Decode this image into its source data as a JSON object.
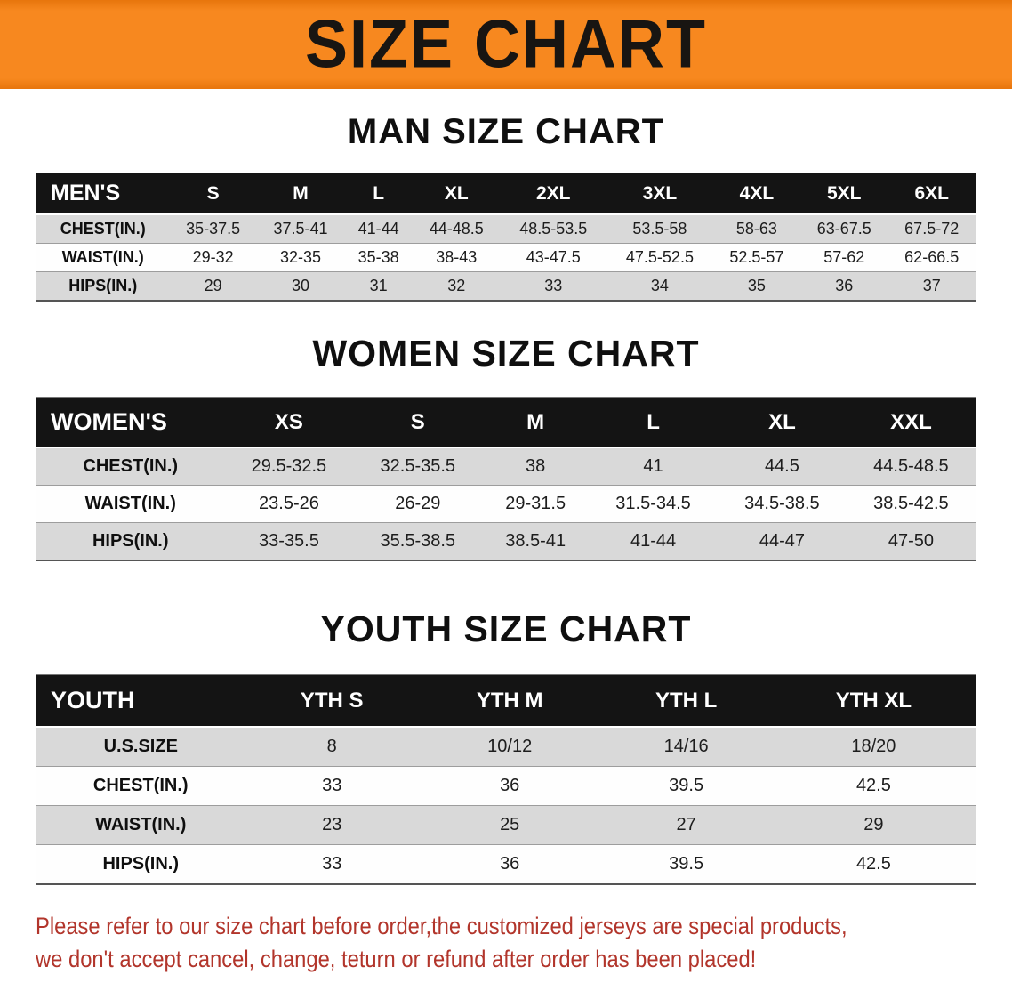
{
  "banner": {
    "title": "SIZE CHART"
  },
  "colors": {
    "banner_orange": "#f7881f",
    "banner_orange_dark": "#e7750c",
    "title_black": "#181512",
    "header_black": "#141414",
    "row_gray": "#d9d9d9",
    "footer_red": "#b2352b"
  },
  "chart_data": [
    {
      "type": "table",
      "title": "MAN SIZE CHART",
      "header": [
        "MEN'S",
        "S",
        "M",
        "L",
        "XL",
        "2XL",
        "3XL",
        "4XL",
        "5XL",
        "6XL"
      ],
      "rows": [
        [
          "CHEST(IN.)",
          "35-37.5",
          "37.5-41",
          "41-44",
          "44-48.5",
          "48.5-53.5",
          "53.5-58",
          "58-63",
          "63-67.5",
          "67.5-72"
        ],
        [
          "WAIST(IN.)",
          "29-32",
          "32-35",
          "35-38",
          "38-43",
          "43-47.5",
          "47.5-52.5",
          "52.5-57",
          "57-62",
          "62-66.5"
        ],
        [
          "HIPS(IN.)",
          "29",
          "30",
          "31",
          "32",
          "33",
          "34",
          "35",
          "36",
          "37"
        ]
      ]
    },
    {
      "type": "table",
      "title": "WOMEN SIZE CHART",
      "header": [
        "WOMEN'S",
        "XS",
        "S",
        "M",
        "L",
        "XL",
        "XXL"
      ],
      "rows": [
        [
          "CHEST(IN.)",
          "29.5-32.5",
          "32.5-35.5",
          "38",
          "41",
          "44.5",
          "44.5-48.5"
        ],
        [
          "WAIST(IN.)",
          "23.5-26",
          "26-29",
          "29-31.5",
          "31.5-34.5",
          "34.5-38.5",
          "38.5-42.5"
        ],
        [
          "HIPS(IN.)",
          "33-35.5",
          "35.5-38.5",
          "38.5-41",
          "41-44",
          "44-47",
          "47-50"
        ]
      ]
    },
    {
      "type": "table",
      "title": "YOUTH SIZE CHART",
      "header": [
        "YOUTH",
        "YTH S",
        "YTH M",
        "YTH L",
        "YTH XL"
      ],
      "rows": [
        [
          "U.S.SIZE",
          "8",
          "10/12",
          "14/16",
          "18/20"
        ],
        [
          "CHEST(IN.)",
          "33",
          "36",
          "39.5",
          "42.5"
        ],
        [
          "WAIST(IN.)",
          "23",
          "25",
          "27",
          "29"
        ],
        [
          "HIPS(IN.)",
          "33",
          "36",
          "39.5",
          "42.5"
        ]
      ]
    }
  ],
  "footer": {
    "line1": "Please refer to our size chart before order,the customized jerseys are special products,",
    "line2": "we don't accept cancel, change, teturn or refund after order has been placed!"
  }
}
